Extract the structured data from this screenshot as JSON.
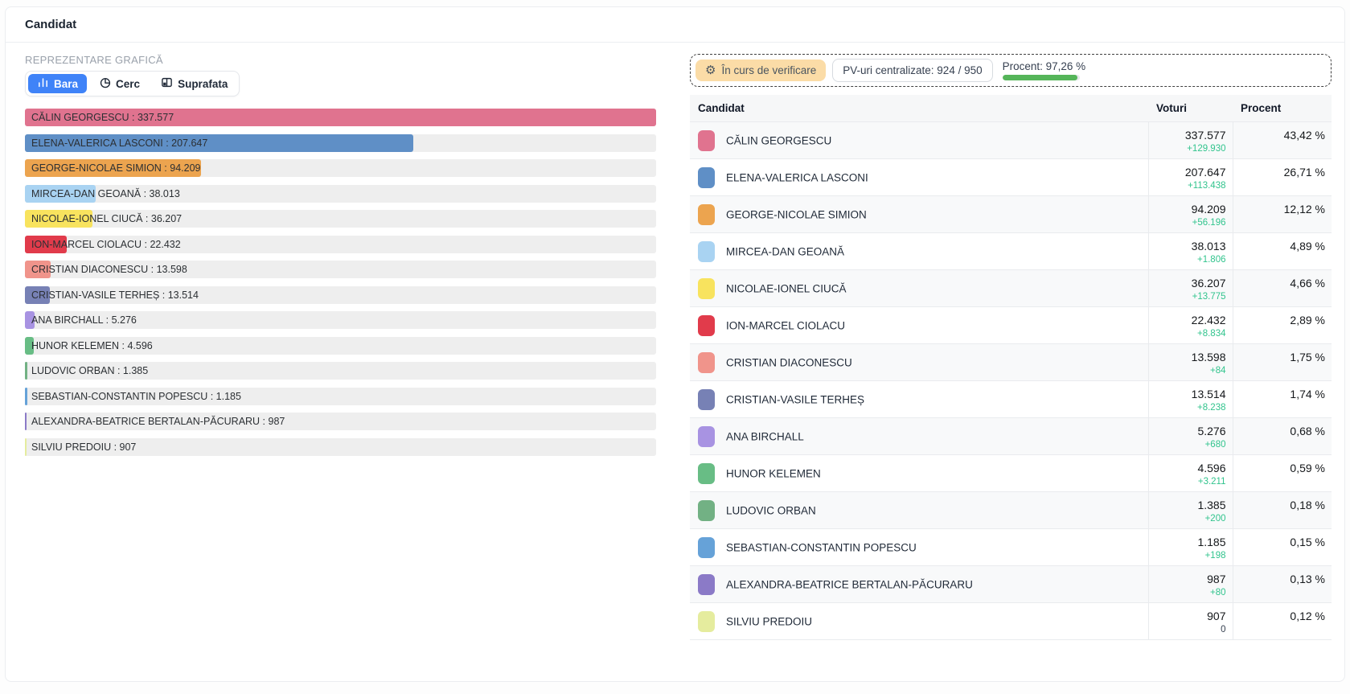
{
  "header": {
    "title": "Candidat"
  },
  "chart": {
    "section_label": "REPREZENTARE GRAFICĂ",
    "tabs": [
      {
        "label": "Bara",
        "active": true
      },
      {
        "label": "Cerc",
        "active": false
      },
      {
        "label": "Suprafata",
        "active": false
      }
    ],
    "active_tab_color": "#3f83f8"
  },
  "status": {
    "verifying_label": "În curs de verificare",
    "verifying_icon": "gear-icon",
    "badge_color": "#fbdca7",
    "pv_label": "PV-uri centralizate: 924 / 950",
    "procent_label": "Procent: 97,26 %",
    "procent_value": 97.26,
    "progress_color": "#55b559"
  },
  "table": {
    "headers": [
      "Candidat",
      "Voturi",
      "Procent"
    ]
  },
  "candidates": [
    {
      "name": "CĂLIN GEORGESCU",
      "votes": "337.577",
      "votes_num": 337577,
      "delta": "+129.930",
      "percent": "43,42 %",
      "color": "#e0738f"
    },
    {
      "name": "ELENA-VALERICA LASCONI",
      "votes": "207.647",
      "votes_num": 207647,
      "delta": "+113.438",
      "percent": "26,71 %",
      "color": "#5f8fc6"
    },
    {
      "name": "GEORGE-NICOLAE SIMION",
      "votes": "94.209",
      "votes_num": 94209,
      "delta": "+56.196",
      "percent": "12,12 %",
      "color": "#eca44f"
    },
    {
      "name": "MIRCEA-DAN GEOANĂ",
      "votes": "38.013",
      "votes_num": 38013,
      "delta": "+1.806",
      "percent": "4,89 %",
      "color": "#a9d3f2"
    },
    {
      "name": "NICOLAE-IONEL CIUCĂ",
      "votes": "36.207",
      "votes_num": 36207,
      "delta": "+13.775",
      "percent": "4,66 %",
      "color": "#f8e35e"
    },
    {
      "name": "ION-MARCEL CIOLACU",
      "votes": "22.432",
      "votes_num": 22432,
      "delta": "+8.834",
      "percent": "2,89 %",
      "color": "#e13b4b"
    },
    {
      "name": "CRISTIAN DIACONESCU",
      "votes": "13.598",
      "votes_num": 13598,
      "delta": "+84",
      "percent": "1,75 %",
      "color": "#f0948b"
    },
    {
      "name": "CRISTIAN-VASILE TERHEȘ",
      "votes": "13.514",
      "votes_num": 13514,
      "delta": "+8.238",
      "percent": "1,74 %",
      "color": "#7781b5"
    },
    {
      "name": "ANA BIRCHALL",
      "votes": "5.276",
      "votes_num": 5276,
      "delta": "+680",
      "percent": "0,68 %",
      "color": "#a893e2"
    },
    {
      "name": "HUNOR KELEMEN",
      "votes": "4.596",
      "votes_num": 4596,
      "delta": "+3.211",
      "percent": "0,59 %",
      "color": "#68bd85"
    },
    {
      "name": "LUDOVIC ORBAN",
      "votes": "1.385",
      "votes_num": 1385,
      "delta": "+200",
      "percent": "0,18 %",
      "color": "#72b184"
    },
    {
      "name": "SEBASTIAN-CONSTANTIN POPESCU",
      "votes": "1.185",
      "votes_num": 1185,
      "delta": "+198",
      "percent": "0,15 %",
      "color": "#66a2d8"
    },
    {
      "name": "ALEXANDRA-BEATRICE BERTALAN-PĂCURARU",
      "votes": "987",
      "votes_num": 987,
      "delta": "+80",
      "percent": "0,13 %",
      "color": "#8b7ac7"
    },
    {
      "name": "SILVIU PREDOIU",
      "votes": "907",
      "votes_num": 907,
      "delta": "0",
      "delta_neutral": true,
      "percent": "0,12 %",
      "color": "#e5ec9e"
    }
  ],
  "chart_data": {
    "type": "bar",
    "orientation": "horizontal",
    "categories": [
      "CĂLIN GEORGESCU",
      "ELENA-VALERICA LASCONI",
      "GEORGE-NICOLAE SIMION",
      "MIRCEA-DAN GEOANĂ",
      "NICOLAE-IONEL CIUCĂ",
      "ION-MARCEL CIOLACU",
      "CRISTIAN DIACONESCU",
      "CRISTIAN-VASILE TERHEȘ",
      "ANA BIRCHALL",
      "HUNOR KELEMEN",
      "LUDOVIC ORBAN",
      "SEBASTIAN-CONSTANTIN POPESCU",
      "ALEXANDRA-BEATRICE BERTALAN-PĂCURARU",
      "SILVIU PREDOIU"
    ],
    "values": [
      337577,
      207647,
      94209,
      38013,
      36207,
      22432,
      13598,
      13514,
      5276,
      4596,
      1385,
      1185,
      987,
      907
    ],
    "title": "REPREZENTARE GRAFICĂ",
    "xlabel": "",
    "ylabel": "",
    "xlim": [
      0,
      337577
    ],
    "grid": false,
    "legend": false,
    "bar_colors": [
      "#e0738f",
      "#5f8fc6",
      "#eca44f",
      "#a9d3f2",
      "#f8e35e",
      "#e13b4b",
      "#f0948b",
      "#7781b5",
      "#a893e2",
      "#68bd85",
      "#72b184",
      "#66a2d8",
      "#8b7ac7",
      "#e5ec9e"
    ]
  }
}
